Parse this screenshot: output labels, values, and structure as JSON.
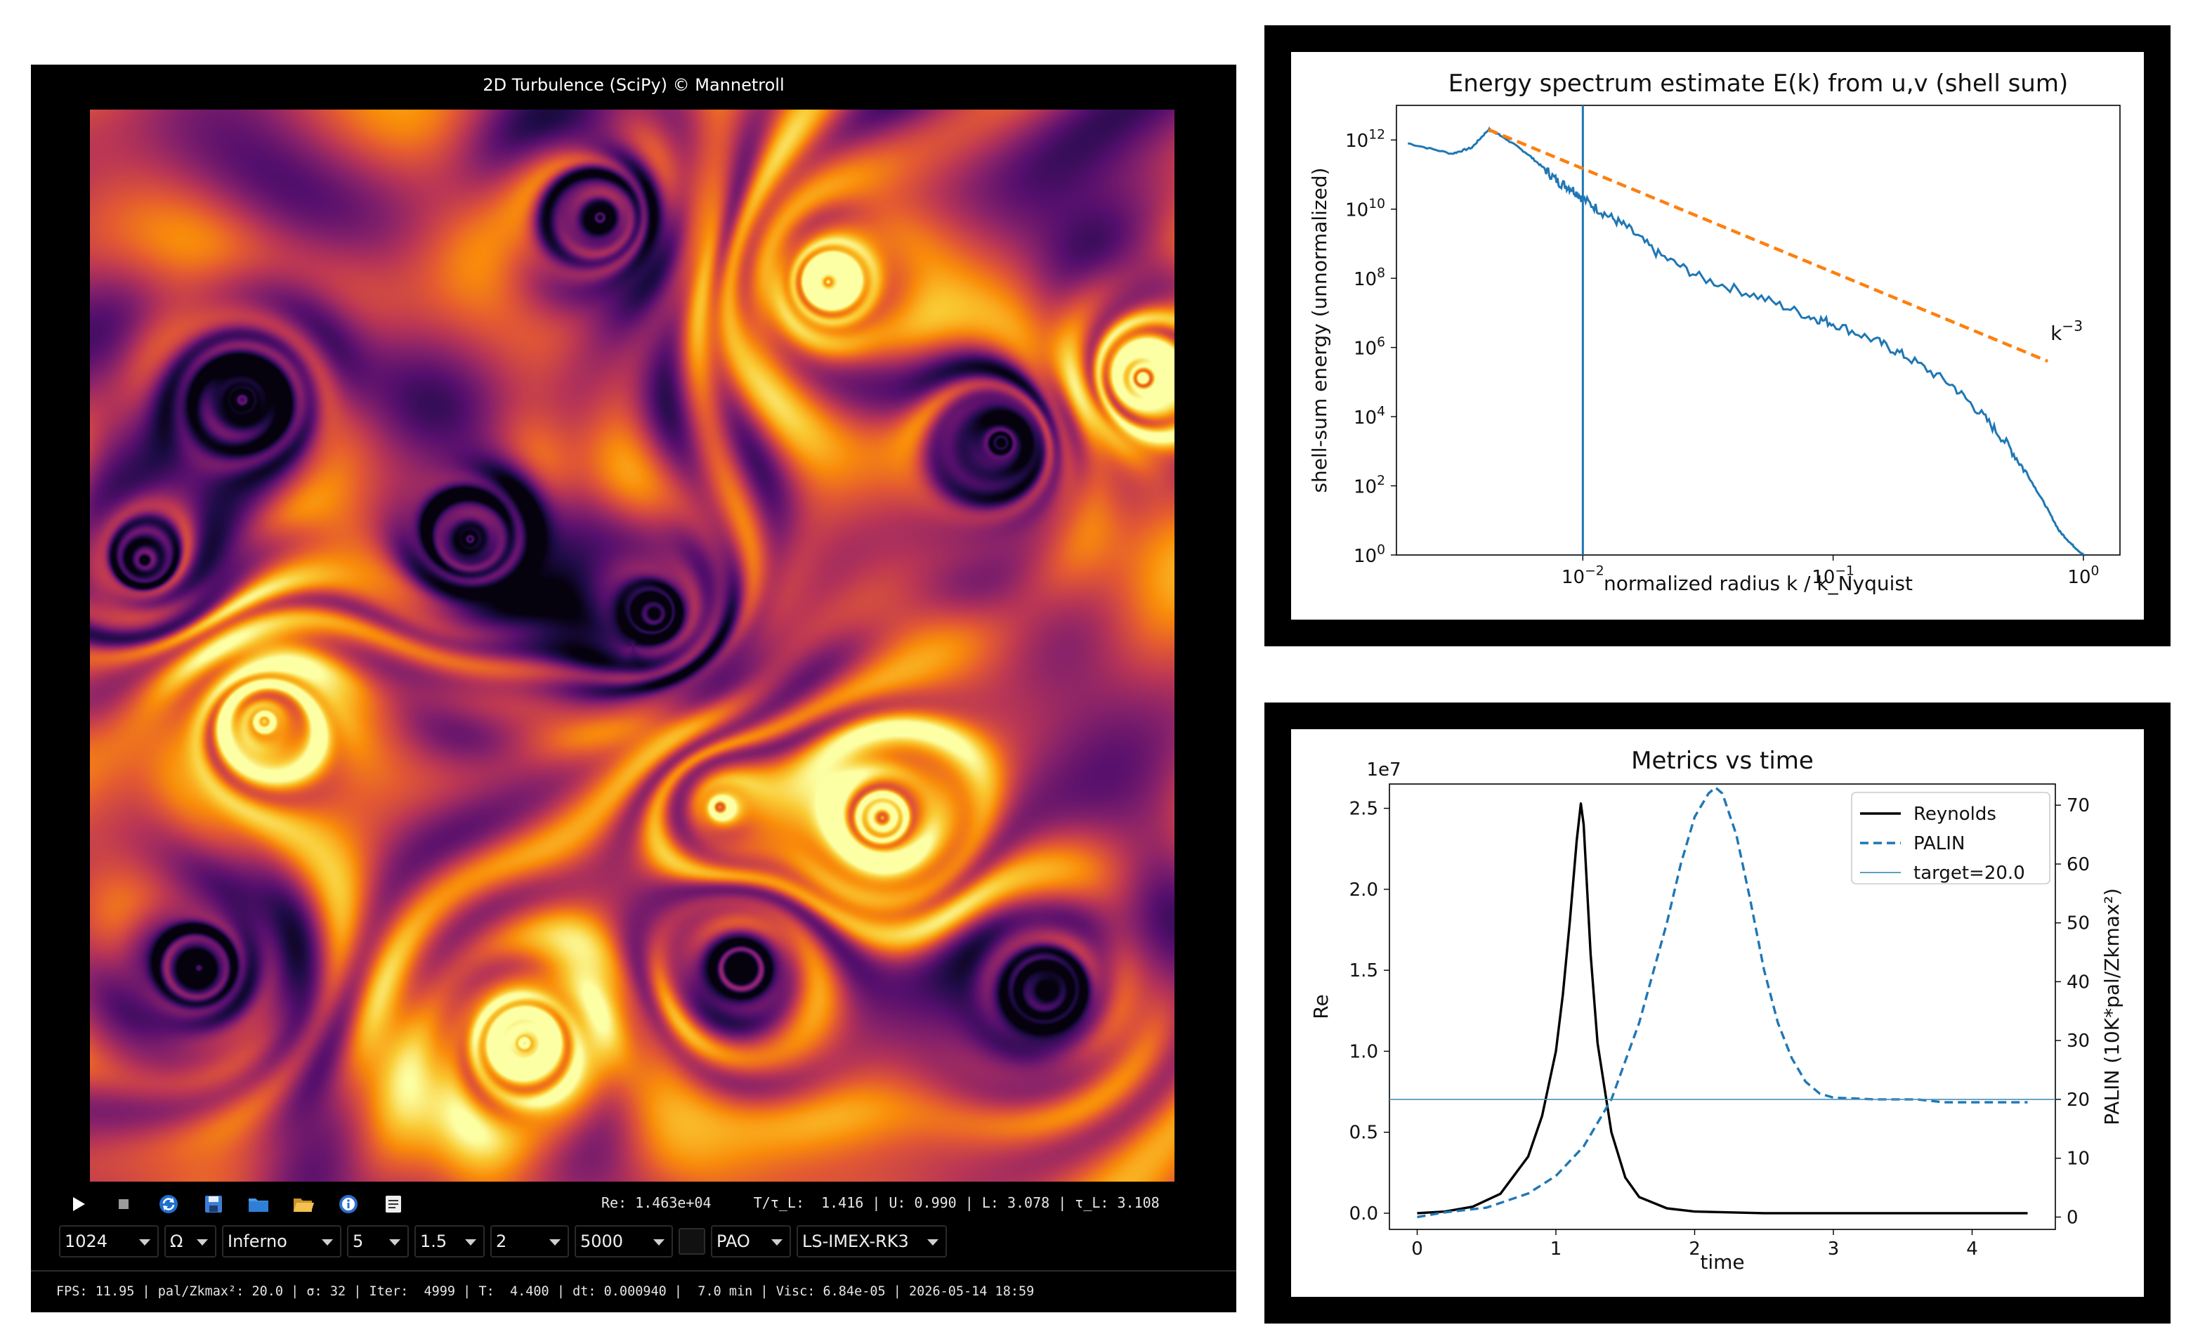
{
  "app": {
    "title": "2D Turbulence (SciPy) © Mannetroll"
  },
  "toolbar": {
    "buttons": [
      {
        "name": "play-button",
        "icon": "play-icon"
      },
      {
        "name": "stop-button",
        "icon": "stop-icon"
      },
      {
        "name": "reset-button",
        "icon": "refresh-icon"
      },
      {
        "name": "save-button",
        "icon": "floppy-disk-icon"
      },
      {
        "name": "folder-button",
        "icon": "folder-icon"
      },
      {
        "name": "open-folder-button",
        "icon": "open-folder-icon"
      },
      {
        "name": "info-button",
        "icon": "info-icon"
      },
      {
        "name": "log-button",
        "icon": "document-icon"
      }
    ],
    "live_status": "Re: 1.463e+04     T/τ_L:  1.416 | U: 0.990 | L: 3.078 | τ_L: 3.108",
    "controls": {
      "grid_size": "1024",
      "field": "Ω",
      "colormap": "Inferno",
      "param_a": "5",
      "param_b": "1.5",
      "param_c": "2",
      "steps": "5000",
      "mode": "PAO",
      "scheme": "LS-IMEX-RK3"
    }
  },
  "status_bar": "FPS: 11.95 | pal/Zkmax²: 20.0 | σ: 32 | Iter:  4999 | T:  4.400 | dt: 0.000940 |  7.0 min | Visc: 6.84e-05 | 2026-05-14 18:59",
  "colors": {
    "window_bg": "#000000",
    "line_blue": "#1f77b4",
    "line_orange": "#ff7f0e",
    "line_black": "#000000"
  },
  "chart_data": [
    {
      "type": "line",
      "title": "Energy spectrum estimate E(k) from u,v (shell sum)",
      "xlabel": "normalized radius  k / k_Nyquist",
      "ylabel": "shell-sum energy (unnormalized)",
      "xscale": "log",
      "yscale": "log",
      "xlim": [
        0.0018,
        1.4
      ],
      "ylim": [
        1,
        10000000000000
      ],
      "xticks": [
        0.01,
        0.1,
        1
      ],
      "xtick_labels": [
        [
          "10",
          "−2"
        ],
        [
          "10",
          "−1"
        ],
        [
          "10",
          "0"
        ]
      ],
      "yticks": [
        1,
        100,
        10000,
        1000000,
        100000000,
        10000000000,
        1000000000000
      ],
      "ytick_labels": [
        [
          "10",
          "0"
        ],
        [
          "10",
          "2"
        ],
        [
          "10",
          "4"
        ],
        [
          "10",
          "6"
        ],
        [
          "10",
          "8"
        ],
        [
          "10",
          "10"
        ],
        [
          "10",
          "12"
        ]
      ],
      "vline_x": 0.01,
      "annotation": {
        "text": "k",
        "sup": "−3",
        "x": 0.72,
        "y": 2000000
      },
      "series": [
        {
          "style": "solid",
          "color": "#1f77b4",
          "x": [
            0.002,
            0.003,
            0.0036,
            0.0042,
            0.0045,
            0.005,
            0.006,
            0.007,
            0.008,
            0.009,
            0.01,
            0.012,
            0.015,
            0.02,
            0.03,
            0.05,
            0.08,
            0.1,
            0.15,
            0.2,
            0.3,
            0.4,
            0.5,
            0.6,
            0.7,
            0.8,
            0.9,
            1.0
          ],
          "y": [
            800000000000,
            400000000000,
            600000000000,
            2000000000000,
            1600000000000,
            1000000000000,
            400000000000,
            150000000000,
            60000000000,
            40000000000,
            20000000000,
            8000000000,
            3000000000,
            500000000,
            100000000,
            30000000,
            8000000,
            5000000,
            1500000,
            500000,
            80000,
            10000,
            1500,
            200,
            30,
            5,
            2,
            1
          ]
        },
        {
          "style": "dashed",
          "color": "#ff7f0e",
          "x": [
            0.0042,
            0.72
          ],
          "y": [
            2000000000000,
            400000
          ]
        }
      ]
    },
    {
      "type": "line",
      "title": "Metrics vs time",
      "xlabel": "time",
      "ylabel": "Re",
      "ylabel_right": "PALIN (10K*pal/Zkmax²)",
      "y_offset_label": "1e7",
      "xlim": [
        -0.2,
        4.6
      ],
      "ylim": [
        -0.1,
        2.65
      ],
      "ylim_right": [
        -2.1,
        73.6
      ],
      "xticks": [
        0,
        1,
        2,
        3,
        4
      ],
      "yticks": [
        0.0,
        0.5,
        1.0,
        1.5,
        2.0,
        2.5
      ],
      "yticks_right": [
        0,
        10,
        20,
        30,
        40,
        50,
        60,
        70
      ],
      "legend": {
        "position": "top-right",
        "entries": [
          "Reynolds",
          "PALIN",
          "target=20.0"
        ]
      },
      "series": [
        {
          "name": "Reynolds",
          "axis": "left",
          "style": "solid",
          "color": "#000000",
          "x": [
            0,
            0.2,
            0.4,
            0.6,
            0.8,
            0.9,
            1.0,
            1.05,
            1.1,
            1.15,
            1.18,
            1.2,
            1.25,
            1.3,
            1.4,
            1.5,
            1.6,
            1.8,
            2.0,
            2.5,
            3.0,
            3.5,
            4.0,
            4.4
          ],
          "y": [
            0.0,
            0.01,
            0.04,
            0.12,
            0.35,
            0.6,
            1.0,
            1.35,
            1.8,
            2.3,
            2.53,
            2.4,
            1.6,
            1.05,
            0.5,
            0.22,
            0.1,
            0.03,
            0.01,
            0.0,
            0.0,
            0.0,
            0.0,
            0.0
          ]
        },
        {
          "name": "PALIN",
          "axis": "right",
          "style": "dashed",
          "color": "#1f77b4",
          "x": [
            0,
            0.2,
            0.5,
            0.8,
            1.0,
            1.2,
            1.4,
            1.6,
            1.8,
            1.9,
            2.0,
            2.1,
            2.15,
            2.2,
            2.3,
            2.4,
            2.5,
            2.6,
            2.7,
            2.8,
            2.9,
            3.0,
            3.3,
            3.6,
            3.8,
            4.0,
            4.2,
            4.4
          ],
          "y": [
            0,
            0.8,
            1.6,
            4,
            7,
            12,
            20,
            33,
            50,
            60,
            68,
            72,
            73,
            72,
            65,
            54,
            42,
            33,
            27,
            23,
            21,
            20.3,
            20,
            20,
            19.5,
            19.5,
            19.5,
            19.5
          ]
        },
        {
          "name": "target=20.0",
          "axis": "right",
          "style": "thin",
          "color": "#4a90b8",
          "hline": 20.0
        }
      ]
    }
  ]
}
